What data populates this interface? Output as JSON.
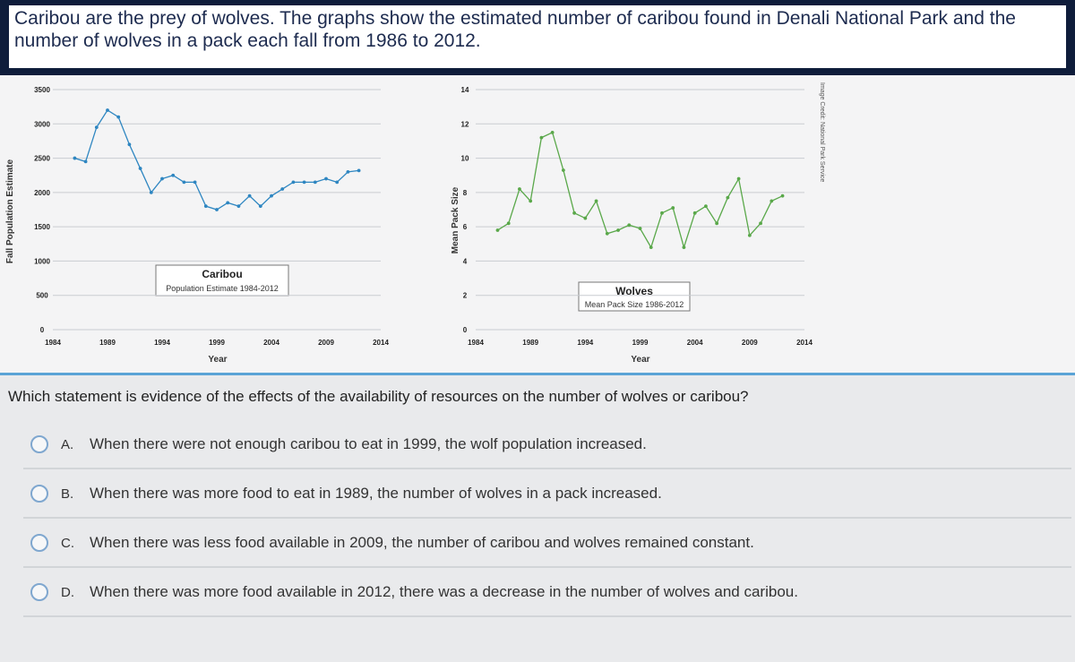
{
  "prompt": "Caribou are the prey of wolves. The graphs show the estimated number of caribou found in Denali National Park and the number of wolves in a pack each fall from 1986 to 2012.",
  "caribou_chart": {
    "ylabel": "Fall Population Estimate",
    "xlabel": "Year",
    "box_title": "Caribou",
    "box_subtitle": "Population Estimate 1984-2012",
    "y_ticks": [
      "0",
      "500",
      "1000",
      "1500",
      "2000",
      "2500",
      "3000",
      "3500"
    ],
    "x_ticks": [
      "1984",
      "1989",
      "1994",
      "1999",
      "2004",
      "2009",
      "2014"
    ],
    "color": "#2e86c1"
  },
  "wolves_chart": {
    "ylabel": "Mean Pack Size",
    "xlabel": "Year",
    "box_title": "Wolves",
    "box_subtitle": "Mean Pack Size 1986-2012",
    "y_ticks": [
      "0",
      "2",
      "4",
      "6",
      "8",
      "10",
      "12",
      "14"
    ],
    "x_ticks": [
      "1984",
      "1989",
      "1994",
      "1999",
      "2004",
      "2009",
      "2014"
    ],
    "color": "#5aa84a"
  },
  "credit": "Image Credit: National Park Service",
  "chart_data": [
    {
      "type": "line",
      "title": "Caribou",
      "subtitle": "Population Estimate 1984-2012",
      "xlabel": "Year",
      "ylabel": "Fall Population Estimate",
      "xlim": [
        1984,
        2014
      ],
      "ylim": [
        0,
        3500
      ],
      "grid": true,
      "series": [
        {
          "name": "Caribou",
          "x": [
            1986,
            1987,
            1988,
            1989,
            1990,
            1991,
            1992,
            1993,
            1994,
            1995,
            1996,
            1997,
            1998,
            1999,
            2000,
            2001,
            2002,
            2003,
            2004,
            2005,
            2006,
            2007,
            2008,
            2009,
            2010,
            2011,
            2012
          ],
          "values": [
            2500,
            2450,
            2950,
            3200,
            3100,
            2700,
            2350,
            2000,
            2200,
            2250,
            2150,
            2150,
            1800,
            1750,
            1850,
            1800,
            1950,
            1800,
            1950,
            2050,
            2150,
            2150,
            2150,
            2200,
            2150,
            2300,
            2320
          ]
        }
      ]
    },
    {
      "type": "line",
      "title": "Wolves",
      "subtitle": "Mean Pack Size 1986-2012",
      "xlabel": "Year",
      "ylabel": "Mean Pack Size",
      "xlim": [
        1984,
        2014
      ],
      "ylim": [
        0,
        14
      ],
      "grid": true,
      "series": [
        {
          "name": "Wolves",
          "x": [
            1986,
            1987,
            1988,
            1989,
            1990,
            1991,
            1992,
            1993,
            1994,
            1995,
            1996,
            1997,
            1998,
            1999,
            2000,
            2001,
            2002,
            2003,
            2004,
            2005,
            2006,
            2007,
            2008,
            2009,
            2010,
            2011,
            2012
          ],
          "values": [
            5.8,
            6.2,
            8.2,
            7.5,
            11.2,
            11.5,
            9.3,
            6.8,
            6.5,
            7.5,
            5.6,
            5.8,
            6.1,
            5.9,
            4.8,
            6.8,
            7.1,
            4.8,
            6.8,
            7.2,
            6.2,
            7.7,
            8.8,
            5.5,
            6.2,
            7.5,
            7.8
          ]
        }
      ]
    }
  ],
  "question": "Which statement is evidence of the effects of the availability of resources on the number of wolves or caribou?",
  "options": [
    {
      "letter": "A.",
      "text": "When there were not enough caribou to eat in 1999, the wolf population increased."
    },
    {
      "letter": "B.",
      "text": "When there was more food to eat in 1989, the number of wolves in a pack increased."
    },
    {
      "letter": "C.",
      "text": "When there was less food available in 2009, the number of caribou and wolves remained constant."
    },
    {
      "letter": "D.",
      "text": "When there was more food available in 2012, there was a decrease in the number of wolves and caribou."
    }
  ]
}
